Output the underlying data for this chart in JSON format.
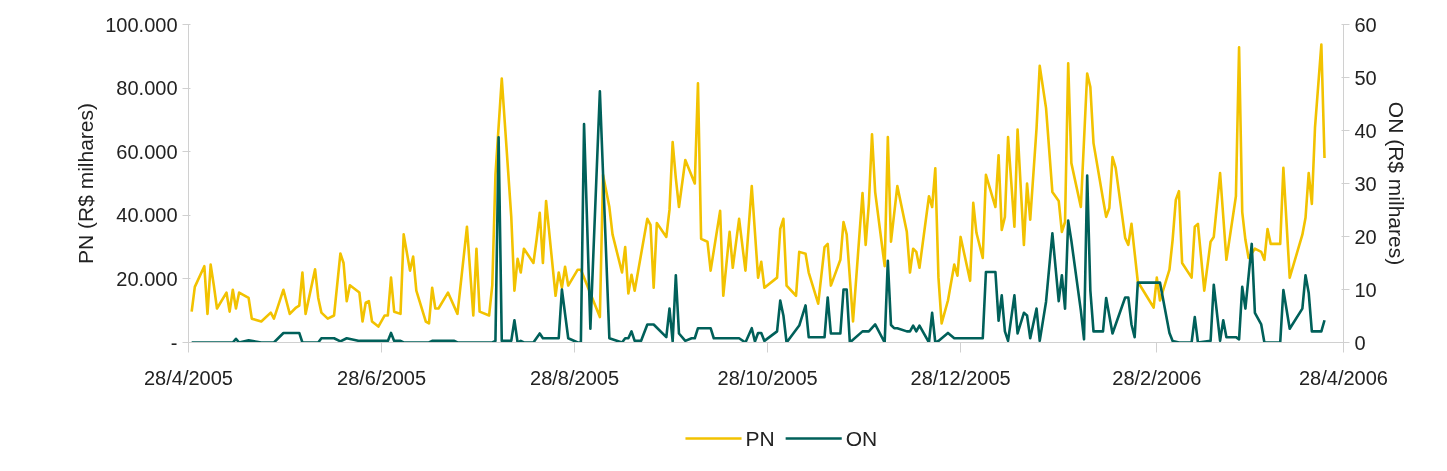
{
  "chart_data": {
    "type": "line",
    "xlabel": null,
    "ylabel": "PN (R$ milhares)",
    "y2label": "ON (R$ milhares)",
    "xlim": [
      "2005-04-28",
      "2006-04-28"
    ],
    "xticks": [
      {
        "value": "2005-04-28",
        "label": "28/4/2005"
      },
      {
        "value": "2005-06-28",
        "label": "28/6/2005"
      },
      {
        "value": "2005-08-28",
        "label": "28/8/2005"
      },
      {
        "value": "2005-10-28",
        "label": "28/10/2005"
      },
      {
        "value": "2005-12-28",
        "label": "28/12/2005"
      },
      {
        "value": "2006-02-28",
        "label": "28/2/2006"
      },
      {
        "value": "2006-04-28",
        "label": "28/4/2006"
      }
    ],
    "ylim": [
      0,
      100000
    ],
    "yticks": [
      {
        "value": 0,
        "label": "-"
      },
      {
        "value": 20000,
        "label": "20.000"
      },
      {
        "value": 40000,
        "label": "40.000"
      },
      {
        "value": 60000,
        "label": "60.000"
      },
      {
        "value": 80000,
        "label": "80.000"
      },
      {
        "value": 100000,
        "label": "100.000"
      }
    ],
    "y2lim": [
      0,
      60
    ],
    "y2ticks": [
      0,
      10,
      20,
      30,
      40,
      50,
      60
    ],
    "grid": false,
    "legend": "bottom",
    "line_style": "solid",
    "marker": "none",
    "series": [
      {
        "name": "PN",
        "color": "#f2c200",
        "x": [
          "2005-04-29",
          "2005-04-30",
          "2005-05-03",
          "2005-05-04",
          "2005-05-05",
          "2005-05-06",
          "2005-05-07",
          "2005-05-10",
          "2005-05-11",
          "2005-05-12",
          "2005-05-13",
          "2005-05-14",
          "2005-05-17",
          "2005-05-18",
          "2005-05-21",
          "2005-05-24",
          "2005-05-25",
          "2005-05-28",
          "2005-05-30",
          "2005-06-01",
          "2005-06-02",
          "2005-06-03",
          "2005-06-04",
          "2005-06-07",
          "2005-06-08",
          "2005-06-09",
          "2005-06-11",
          "2005-06-13",
          "2005-06-15",
          "2005-06-16",
          "2005-06-17",
          "2005-06-18",
          "2005-06-21",
          "2005-06-22",
          "2005-06-23",
          "2005-06-24",
          "2005-06-25",
          "2005-06-27",
          "2005-06-29",
          "2005-06-30",
          "2005-07-01",
          "2005-07-02",
          "2005-07-04",
          "2005-07-05",
          "2005-07-07",
          "2005-07-08",
          "2005-07-09",
          "2005-07-12",
          "2005-07-13",
          "2005-07-14",
          "2005-07-15",
          "2005-07-16",
          "2005-07-19",
          "2005-07-22",
          "2005-07-25",
          "2005-07-27",
          "2005-07-28",
          "2005-07-29",
          "2005-08-01",
          "2005-08-02",
          "2005-08-03",
          "2005-08-05",
          "2005-08-08",
          "2005-08-09",
          "2005-08-10",
          "2005-08-11",
          "2005-08-12",
          "2005-08-15",
          "2005-08-16",
          "2005-08-17",
          "2005-08-18",
          "2005-08-19",
          "2005-08-22",
          "2005-08-23",
          "2005-08-24",
          "2005-08-25",
          "2005-08-26",
          "2005-08-29",
          "2005-08-30",
          "2005-09-05",
          "2005-09-06",
          "2005-09-08",
          "2005-09-09",
          "2005-09-12",
          "2005-09-13",
          "2005-09-14",
          "2005-09-15",
          "2005-09-16",
          "2005-09-20",
          "2005-09-21",
          "2005-09-22",
          "2005-09-23",
          "2005-09-26",
          "2005-09-27",
          "2005-09-28",
          "2005-09-29",
          "2005-09-30",
          "2005-10-02",
          "2005-10-05",
          "2005-10-06",
          "2005-10-07",
          "2005-10-09",
          "2005-10-10",
          "2005-10-13",
          "2005-10-14",
          "2005-10-16",
          "2005-10-17",
          "2005-10-19",
          "2005-10-21",
          "2005-10-23",
          "2005-10-25",
          "2005-10-26",
          "2005-10-27",
          "2005-10-31",
          "2005-11-01",
          "2005-11-02",
          "2005-11-03",
          "2005-11-06",
          "2005-11-07",
          "2005-11-09",
          "2005-11-10",
          "2005-11-13",
          "2005-11-15",
          "2005-11-16",
          "2005-11-17",
          "2005-11-20",
          "2005-11-21",
          "2005-11-22",
          "2005-11-24",
          "2005-11-27",
          "2005-11-28",
          "2005-11-29",
          "2005-11-30",
          "2005-12-01",
          "2005-12-04",
          "2005-12-05",
          "2005-12-06",
          "2005-12-08",
          "2005-12-11",
          "2005-12-12",
          "2005-12-13",
          "2005-12-14",
          "2005-12-15",
          "2005-12-18",
          "2005-12-19",
          "2005-12-20",
          "2005-12-21",
          "2005-12-22",
          "2005-12-24",
          "2005-12-26",
          "2005-12-27",
          "2005-12-28",
          "2005-12-31",
          "2006-01-01",
          "2006-01-02",
          "2006-01-04",
          "2006-01-05",
          "2006-01-08",
          "2006-01-09",
          "2006-01-10",
          "2006-01-11",
          "2006-01-12",
          "2006-01-14",
          "2006-01-15",
          "2006-01-17",
          "2006-01-18",
          "2006-01-19",
          "2006-01-21",
          "2006-01-22",
          "2006-01-24",
          "2006-01-26",
          "2006-01-28",
          "2006-01-29",
          "2006-01-30",
          "2006-01-31",
          "2006-02-01",
          "2006-02-04",
          "2006-02-06",
          "2006-02-07",
          "2006-02-08",
          "2006-02-11",
          "2006-02-12",
          "2006-02-13",
          "2006-02-14",
          "2006-02-15",
          "2006-02-18",
          "2006-02-19",
          "2006-02-20",
          "2006-02-22",
          "2006-02-27",
          "2006-02-28",
          "2006-03-01",
          "2006-03-04",
          "2006-03-05",
          "2006-03-06",
          "2006-03-07",
          "2006-03-08",
          "2006-03-11",
          "2006-03-12",
          "2006-03-13",
          "2006-03-15",
          "2006-03-17",
          "2006-03-18",
          "2006-03-20",
          "2006-03-22",
          "2006-03-25",
          "2006-03-26",
          "2006-03-27",
          "2006-03-28",
          "2006-03-29",
          "2006-03-31",
          "2006-04-02",
          "2006-04-03",
          "2006-04-04",
          "2006-04-05",
          "2006-04-08",
          "2006-04-09",
          "2006-04-11",
          "2006-04-15",
          "2006-04-16",
          "2006-04-17",
          "2006-04-18",
          "2006-04-19",
          "2006-04-21",
          "2006-04-22"
        ],
        "values": [
          9700,
          17500,
          24000,
          9000,
          24500,
          18000,
          10700,
          15700,
          9700,
          16600,
          10700,
          15700,
          14000,
          7500,
          6600,
          9400,
          7500,
          16600,
          9000,
          11000,
          11600,
          22000,
          9000,
          23000,
          14000,
          9400,
          7500,
          8500,
          28000,
          25000,
          13000,
          18000,
          15700,
          6600,
          12500,
          13000,
          6600,
          5000,
          8500,
          8500,
          20400,
          9700,
          9000,
          34000,
          22600,
          27000,
          16300,
          6600,
          6000,
          17200,
          10700,
          10700,
          15700,
          9000,
          36400,
          8500,
          29500,
          9700,
          8500,
          18000,
          52700,
          83000,
          39500,
          16300,
          26300,
          22000,
          29500,
          25000,
          32300,
          40800,
          25000,
          44500,
          14700,
          22000,
          17200,
          23800,
          17900,
          22900,
          22900,
          8000,
          52700,
          42600,
          34000,
          22000,
          30000,
          15400,
          21300,
          16300,
          38900,
          37000,
          17200,
          37600,
          33200,
          41700,
          63000,
          51700,
          42600,
          57400,
          50000,
          81500,
          32600,
          31700,
          22600,
          41400,
          14700,
          34800,
          23500,
          38900,
          22600,
          49200,
          20400,
          25400,
          17200,
          20400,
          35700,
          38900,
          17900,
          14700,
          28500,
          27900,
          22000,
          12200,
          30000,
          31000,
          17900,
          26000,
          37900,
          34000,
          6600,
          47000,
          30700,
          43600,
          65500,
          47300,
          24000,
          64600,
          31700,
          49200,
          34800,
          22000,
          29500,
          28500,
          23500,
          46000,
          42600,
          54800,
          20400,
          6000,
          13200,
          24500,
          21000,
          33200,
          19400,
          43900,
          34500,
          26600,
          52700,
          42600,
          58900,
          35400,
          39500,
          64600,
          36400,
          67000,
          30700,
          50000,
          38600,
          67400,
          87000,
          73700,
          47300,
          44500,
          34800,
          37900,
          87800,
          56400,
          42600,
          84600,
          80300,
          62700,
          45100,
          39500,
          42300,
          58300,
          54900,
          32900,
          30700,
          37300,
          19100,
          11000,
          20400,
          13200,
          22900,
          32300,
          44800,
          47600,
          25000,
          20400,
          36400,
          37300,
          16300,
          31700,
          33200,
          53300,
          26000,
          46000,
          92800,
          41000,
          32300,
          26600,
          29500,
          28500,
          26000,
          35700,
          31000,
          31000,
          54900,
          20400,
          33900,
          39200,
          53300,
          43600,
          67700,
          93700,
          58000
        ]
      },
      {
        "name": "ON",
        "color": "#00605a",
        "axis": "y2",
        "x": [
          "2005-04-29",
          "2005-05-12",
          "2005-05-13",
          "2005-05-14",
          "2005-05-17",
          "2005-05-21",
          "2005-05-25",
          "2005-05-28",
          "2005-06-02",
          "2005-06-03",
          "2005-06-08",
          "2005-06-09",
          "2005-06-13",
          "2005-06-15",
          "2005-06-17",
          "2005-06-21",
          "2005-06-30",
          "2005-07-01",
          "2005-07-02",
          "2005-07-04",
          "2005-07-05",
          "2005-07-13",
          "2005-07-14",
          "2005-07-21",
          "2005-07-22",
          "2005-08-02",
          "2005-08-03",
          "2005-08-04",
          "2005-08-05",
          "2005-08-08",
          "2005-08-09",
          "2005-08-10",
          "2005-08-11",
          "2005-08-12",
          "2005-08-15",
          "2005-08-17",
          "2005-08-18",
          "2005-08-23",
          "2005-08-24",
          "2005-08-26",
          "2005-08-29",
          "2005-08-30",
          "2005-08-31",
          "2005-09-02",
          "2005-09-05",
          "2005-09-08",
          "2005-09-12",
          "2005-09-13",
          "2005-09-14",
          "2005-09-15",
          "2005-09-16",
          "2005-09-18",
          "2005-09-20",
          "2005-09-22",
          "2005-09-26",
          "2005-09-27",
          "2005-09-28",
          "2005-09-29",
          "2005-09-30",
          "2005-10-02",
          "2005-10-04",
          "2005-10-05",
          "2005-10-06",
          "2005-10-10",
          "2005-10-11",
          "2005-10-19",
          "2005-10-21",
          "2005-10-23",
          "2005-10-24",
          "2005-10-25",
          "2005-10-26",
          "2005-10-27",
          "2005-10-31",
          "2005-11-01",
          "2005-11-02",
          "2005-11-03",
          "2005-11-07",
          "2005-11-09",
          "2005-11-10",
          "2005-11-15",
          "2005-11-16",
          "2005-11-17",
          "2005-11-20",
          "2005-11-21",
          "2005-11-22",
          "2005-11-23",
          "2005-11-27",
          "2005-11-29",
          "2005-12-01",
          "2005-12-04",
          "2005-12-05",
          "2005-12-06",
          "2005-12-07",
          "2005-12-08",
          "2005-12-11",
          "2005-12-12",
          "2005-12-13",
          "2005-12-14",
          "2005-12-15",
          "2005-12-18",
          "2005-12-19",
          "2005-12-20",
          "2005-12-21",
          "2005-12-24",
          "2005-12-26",
          "2005-12-30",
          "2006-01-04",
          "2006-01-05",
          "2006-01-08",
          "2006-01-09",
          "2006-01-10",
          "2006-01-11",
          "2006-01-12",
          "2006-01-14",
          "2006-01-15",
          "2006-01-17",
          "2006-01-18",
          "2006-01-19",
          "2006-01-21",
          "2006-01-22",
          "2006-01-24",
          "2006-01-26",
          "2006-01-28",
          "2006-01-29",
          "2006-01-30",
          "2006-01-31",
          "2006-02-01",
          "2006-02-04",
          "2006-02-05",
          "2006-02-06",
          "2006-02-07",
          "2006-02-08",
          "2006-02-11",
          "2006-02-12",
          "2006-02-14",
          "2006-02-18",
          "2006-02-19",
          "2006-02-20",
          "2006-02-21",
          "2006-02-22",
          "2006-03-01",
          "2006-03-04",
          "2006-03-05",
          "2006-03-07",
          "2006-03-11",
          "2006-03-12",
          "2006-03-13",
          "2006-03-17",
          "2006-03-18",
          "2006-03-20",
          "2006-03-21",
          "2006-03-22",
          "2006-03-25",
          "2006-03-26",
          "2006-03-27",
          "2006-03-28",
          "2006-03-30",
          "2006-03-31",
          "2006-04-02",
          "2006-04-03",
          "2006-04-08",
          "2006-04-09",
          "2006-04-11",
          "2006-04-15",
          "2006-04-16",
          "2006-04-17",
          "2006-04-18",
          "2006-04-21",
          "2006-04-22"
        ],
        "values": [
          0,
          0,
          0.7,
          0,
          0.4,
          0,
          0,
          1.8,
          1.8,
          0,
          0,
          0.8,
          0.8,
          0.2,
          0.8,
          0.3,
          0.3,
          1.8,
          0.3,
          0.3,
          0,
          0,
          0.3,
          0.3,
          0,
          0,
          0.3,
          38.7,
          0.3,
          0.3,
          4.2,
          0,
          0.3,
          0,
          0,
          1.7,
          0.8,
          0.8,
          10,
          0.8,
          0,
          0,
          41.2,
          2.6,
          47.4,
          0.8,
          0,
          0.8,
          0.8,
          2.1,
          0.3,
          0.3,
          3.4,
          3.4,
          1,
          6.4,
          0.2,
          12.7,
          1.7,
          0.3,
          0.8,
          0.8,
          2.7,
          2.7,
          0.8,
          0.8,
          0,
          2.7,
          0.2,
          1.8,
          1.8,
          0.3,
          2.1,
          7.9,
          5.1,
          0,
          3.2,
          7,
          1,
          1,
          8.5,
          1.7,
          1.7,
          10,
          10,
          0,
          2.1,
          2.1,
          3.4,
          0,
          15.4,
          3.3,
          2.7,
          2.7,
          2.1,
          2.1,
          3.2,
          2.1,
          3.2,
          0,
          5.6,
          0,
          0.3,
          1.8,
          0.8,
          0.8,
          0.8,
          13.3,
          13.3,
          4.1,
          8.9,
          2.1,
          0.3,
          8.9,
          1.7,
          5.6,
          5.1,
          0.8,
          6.4,
          0.3,
          7.7,
          20.6,
          7.8,
          12.7,
          6.4,
          23,
          19.2,
          6,
          0.6,
          31.5,
          9.8,
          2.1,
          2.1,
          8.4,
          1.7,
          8.5,
          8.5,
          3.4,
          1,
          11.3,
          11.3,
          1.8,
          0.3,
          0,
          0,
          4.8,
          0,
          0.3,
          10.9,
          0.3,
          4.2,
          1,
          1,
          0.6,
          10.5,
          6.4,
          18.6,
          5.6,
          3.4,
          0,
          0,
          9.9,
          2.6,
          6.4,
          12.7,
          9.4,
          2.1,
          2.1,
          4.2
        ]
      }
    ]
  }
}
